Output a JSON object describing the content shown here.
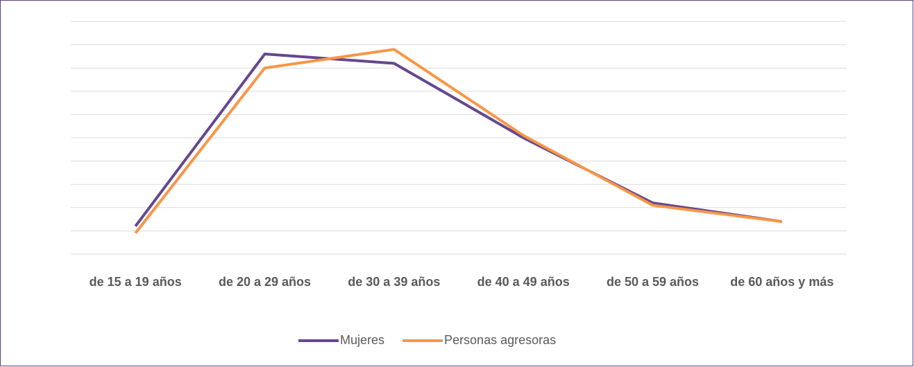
{
  "chart_data": {
    "type": "line",
    "categories": [
      "de 15 a 19 años",
      "de 20 a 29 años",
      "de 30 a 39 años",
      "de 40 a 49 años",
      "de 50 a 59 años",
      "de 60 años y más"
    ],
    "series": [
      {
        "name": "Mujeres",
        "color": "#65478f",
        "values": [
          1.2,
          8.6,
          8.2,
          5.0,
          2.2,
          1.4
        ]
      },
      {
        "name": "Personas agresoras",
        "color": "#f79646",
        "values": [
          0.9,
          8.0,
          8.8,
          5.1,
          2.1,
          1.4
        ]
      }
    ],
    "ylim": [
      0,
      10
    ],
    "yticks": [
      0,
      1,
      2,
      3,
      4,
      5,
      6,
      7,
      8,
      9,
      10
    ],
    "grid": true,
    "legend": "bottom"
  }
}
